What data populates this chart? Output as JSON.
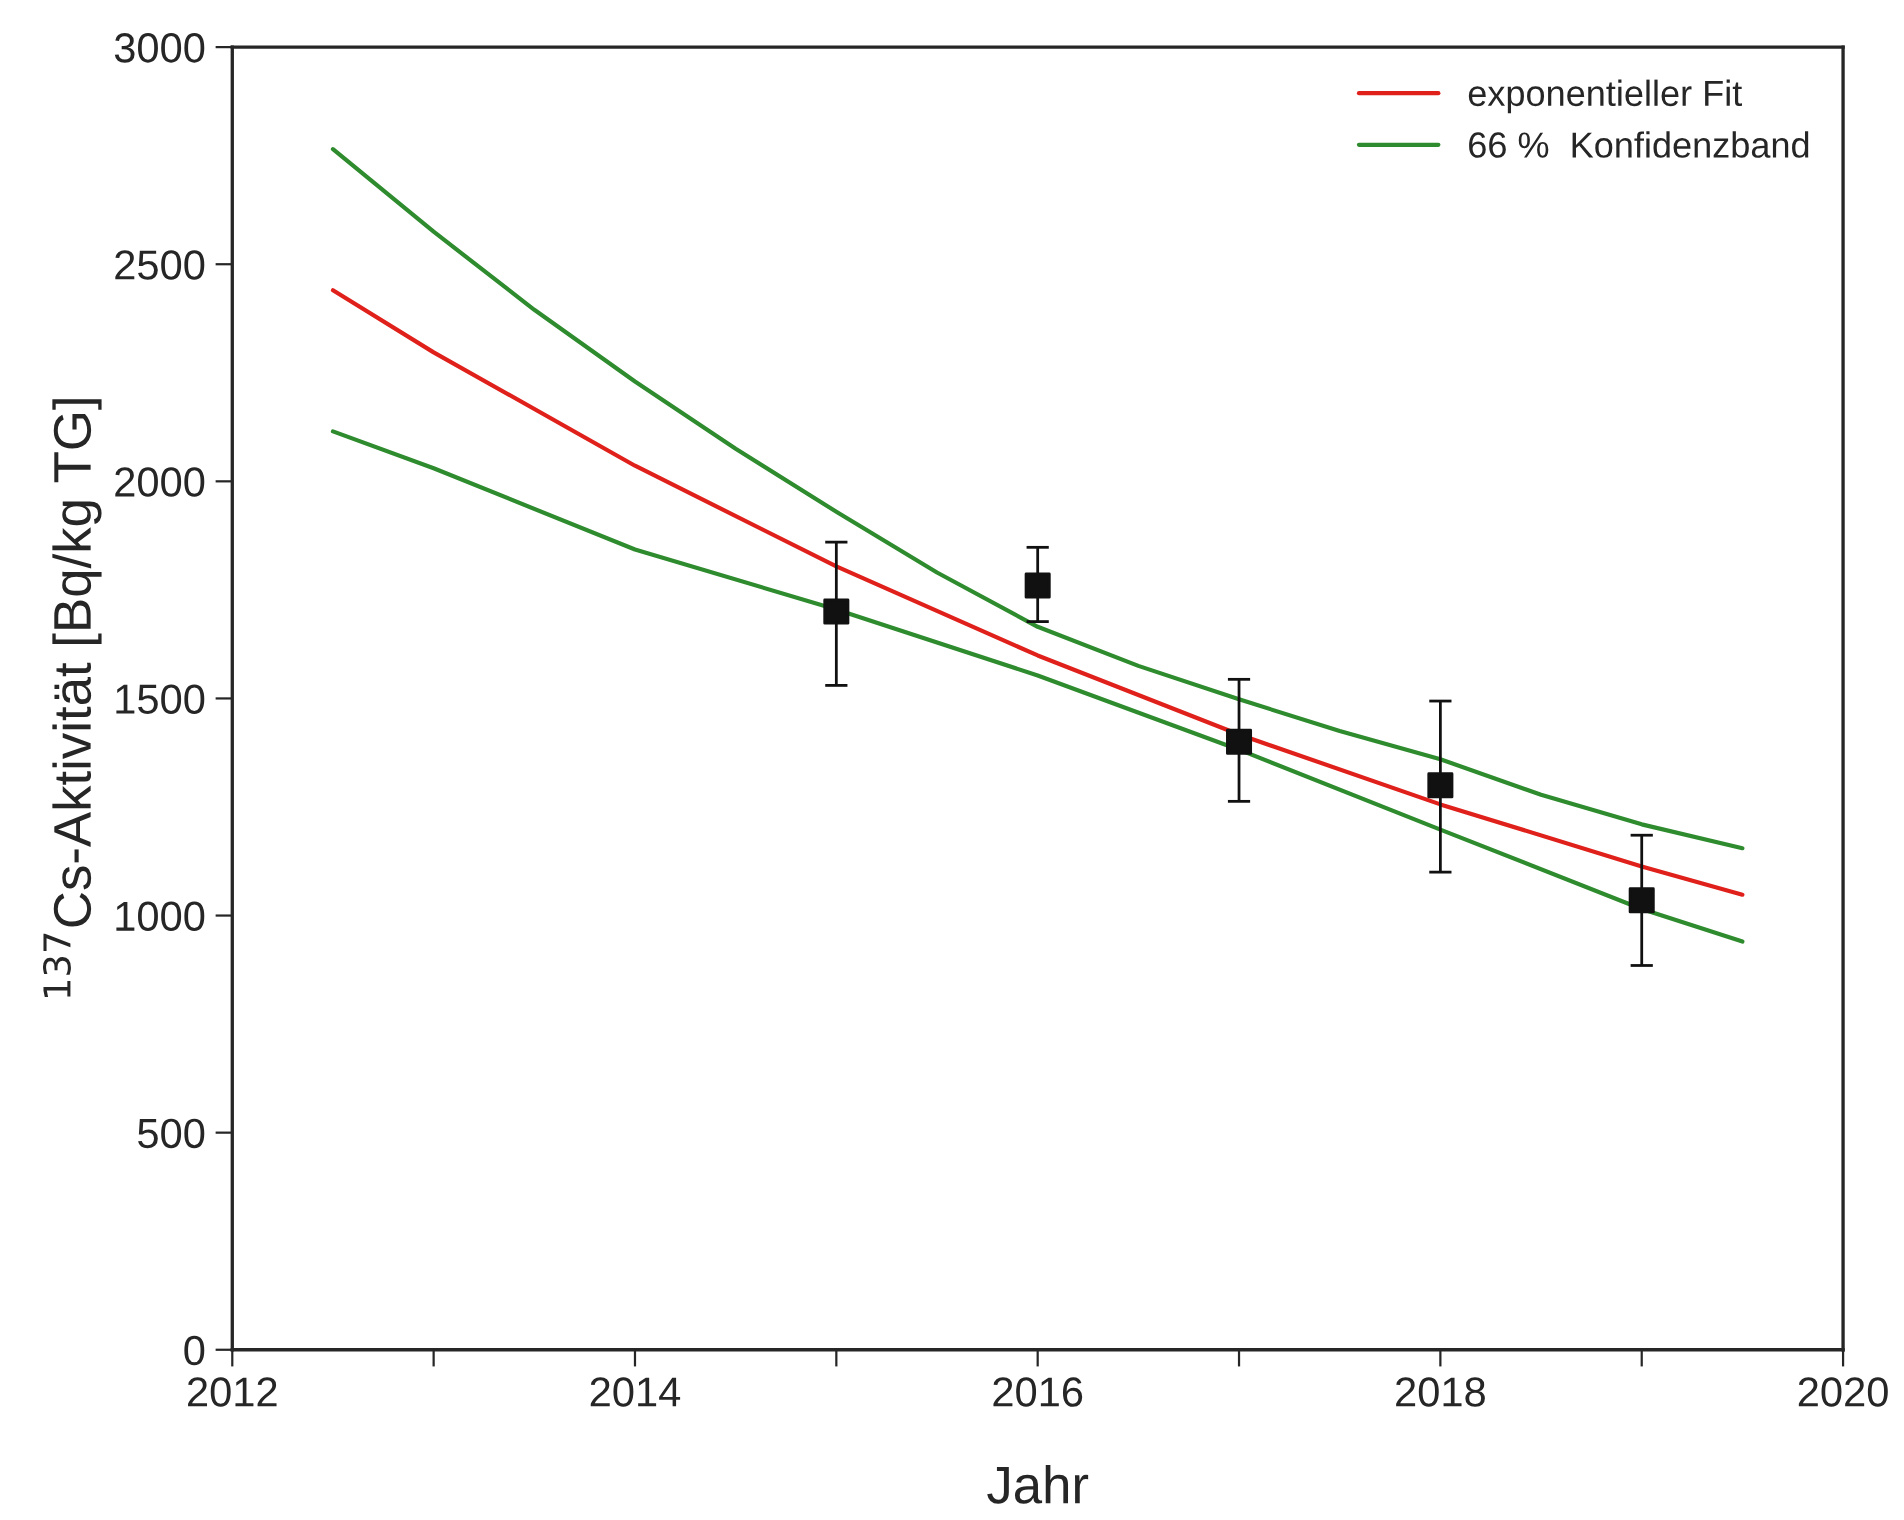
{
  "chart_data": {
    "type": "line",
    "xlabel": "Jahr",
    "ylabel": "$^{137}$Cs-Aktivität [Bq/kg TG]",
    "xlim": [
      2012,
      2020
    ],
    "ylim": [
      0,
      3000
    ],
    "xticks": [
      2012,
      {
        "value": 2013,
        "label": null
      },
      2014,
      {
        "value": 2015,
        "label": null
      },
      2016,
      {
        "value": 2017,
        "label": null
      },
      2018,
      {
        "value": 2019,
        "label": null
      },
      2020
    ],
    "yticks": [
      0,
      500,
      1000,
      1500,
      2000,
      2500,
      3000
    ],
    "grid": false,
    "legend": "top right",
    "series": [
      {
        "type": "scatter",
        "color": "#111111",
        "marker": "square",
        "x": [
          2015,
          2016,
          2017,
          2018,
          2019
        ],
        "values": [
          1700,
          1760,
          1400,
          1300,
          1035
        ],
        "errors": [
          [
            1530,
            1860
          ],
          [
            1677,
            1848
          ],
          [
            1263,
            1544
          ],
          [
            1100,
            1494
          ],
          [
            885,
            1185
          ]
        ]
      },
      {
        "name": "exponentieller Fit",
        "color": "#e0201b",
        "x": [
          2012.5,
          2013,
          2014,
          2015,
          2016,
          2017,
          2018,
          2019,
          2019.5
        ],
        "values": [
          2440,
          2297,
          2036,
          1804,
          1599,
          1417,
          1256,
          1113,
          1048
        ]
      },
      {
        "name": "66 %  Konfidenzband",
        "color": "#2e8b2e",
        "x": [
          2012.5,
          2013,
          2013.5,
          2014,
          2014.5,
          2015,
          2015.5,
          2016,
          2016.5,
          2017,
          2017.5,
          2018,
          2018.5,
          2019,
          2019.5
        ],
        "values": [
          2765,
          2575,
          2395,
          2230,
          2075,
          1930,
          1790,
          1665,
          1575,
          1498,
          1425,
          1360,
          1278,
          1210,
          1155
        ]
      },
      {
        "color": "#2e8b2e",
        "x": [
          2012.5,
          2013,
          2014,
          2015,
          2016,
          2017,
          2018,
          2019,
          2019.5
        ],
        "values": [
          2115,
          2030,
          1843,
          1705,
          1553,
          1382,
          1198,
          1015,
          940
        ]
      }
    ]
  }
}
